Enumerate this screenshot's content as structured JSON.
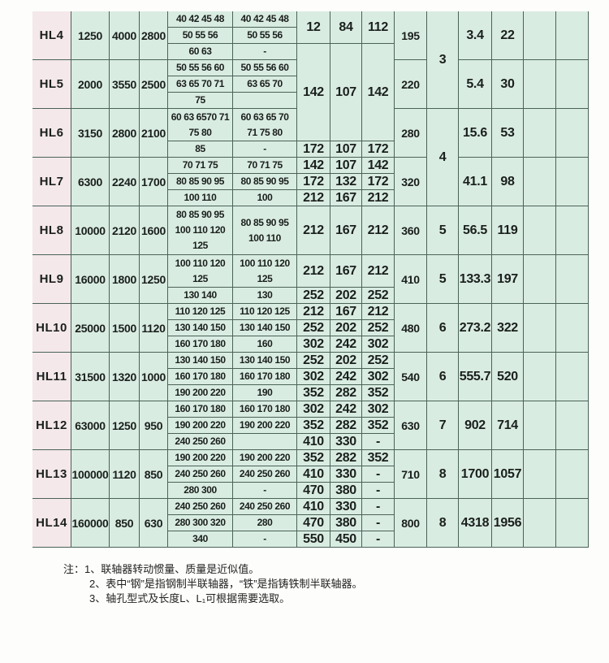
{
  "models": [
    {
      "model": "HL4",
      "torque": "1250",
      "speed_steel": "4000",
      "speed_iron": "2800",
      "D": "195",
      "inertia": "3.4",
      "mass": "22"
    },
    {
      "model": "HL5",
      "torque": "2000",
      "speed_steel": "3550",
      "speed_iron": "2500",
      "D": "220",
      "inertia": "5.4",
      "mass": "30"
    },
    {
      "model": "HL6",
      "torque": "3150",
      "speed_steel": "2800",
      "speed_iron": "2100",
      "D": "280",
      "inertia": "15.6",
      "mass": "53"
    },
    {
      "model": "HL7",
      "torque": "6300",
      "speed_steel": "2240",
      "speed_iron": "1700",
      "D": "320",
      "inertia": "41.1",
      "mass": "98"
    },
    {
      "model": "HL8",
      "torque": "10000",
      "speed_steel": "2120",
      "speed_iron": "1600",
      "D": "360",
      "inertia": "56.5",
      "mass": "119"
    },
    {
      "model": "HL9",
      "torque": "16000",
      "speed_steel": "1800",
      "speed_iron": "1250",
      "D": "410",
      "inertia": "133.3",
      "mass": "197"
    },
    {
      "model": "HL10",
      "torque": "25000",
      "speed_steel": "1500",
      "speed_iron": "1120",
      "D": "480",
      "inertia": "273.2",
      "mass": "322"
    },
    {
      "model": "HL11",
      "torque": "31500",
      "speed_steel": "1320",
      "speed_iron": "1000",
      "D": "540",
      "inertia": "555.7",
      "mass": "520"
    },
    {
      "model": "HL12",
      "torque": "63000",
      "speed_steel": "1250",
      "speed_iron": "950",
      "D": "630",
      "inertia": "902",
      "mass": "714"
    },
    {
      "model": "HL13",
      "torque": "100000",
      "speed_steel": "1120",
      "speed_iron": "850",
      "D": "710",
      "inertia": "1700",
      "mass": "1057"
    },
    {
      "model": "HL14",
      "torque": "160000",
      "speed_steel": "850",
      "speed_iron": "630",
      "D": "800",
      "inertia": "4318",
      "mass": "1956"
    }
  ],
  "bores": [
    {
      "start": 0,
      "span": 1,
      "steel": "40 42 45 48",
      "iron": "40 42 45 48"
    },
    {
      "start": 1,
      "span": 1,
      "steel": "50 55 56",
      "iron": "50 55 56"
    },
    {
      "start": 2,
      "span": 1,
      "steel": "60 63",
      "iron": "-"
    },
    {
      "start": 3,
      "span": 1,
      "steel": "50 55 56 60",
      "iron": "50 55 56 60"
    },
    {
      "start": 4,
      "span": 1,
      "steel": "63 65 70 71",
      "iron": "63 65 70"
    },
    {
      "start": 5,
      "span": 1,
      "steel": "75",
      "iron": ""
    },
    {
      "start": 6,
      "span": 2,
      "steel": "60 63 6570 71\n75 80",
      "iron": "60 63 65 70\n71 75 80"
    },
    {
      "start": 8,
      "span": 1,
      "steel": "85",
      "iron": "-"
    },
    {
      "start": 9,
      "span": 1,
      "steel": "70 71 75",
      "iron": "70 71 75"
    },
    {
      "start": 10,
      "span": 1,
      "steel": "80 85 90 95",
      "iron": "80 85 90 95"
    },
    {
      "start": 11,
      "span": 1,
      "steel": "100 110",
      "iron": "100"
    },
    {
      "start": 12,
      "span": 3,
      "steel": "80 85 90 95\n100 110 120\n125",
      "iron": "80 85 90 95\n100 110"
    },
    {
      "start": 15,
      "span": 2,
      "steel": "100 110 120\n125",
      "iron": "100 110 120\n125"
    },
    {
      "start": 17,
      "span": 1,
      "steel": "130 140",
      "iron": "130"
    },
    {
      "start": 18,
      "span": 1,
      "steel": "110 120 125",
      "iron": "110 120 125"
    },
    {
      "start": 19,
      "span": 1,
      "steel": "130 140 150",
      "iron": "130 140 150"
    },
    {
      "start": 20,
      "span": 1,
      "steel": "160 170 180",
      "iron": "160"
    },
    {
      "start": 21,
      "span": 1,
      "steel": "130 140 150",
      "iron": "130 140 150"
    },
    {
      "start": 22,
      "span": 1,
      "steel": "160 170 180",
      "iron": "160 170 180"
    },
    {
      "start": 23,
      "span": 1,
      "steel": "190 200 220",
      "iron": "190"
    },
    {
      "start": 24,
      "span": 1,
      "steel": "160 170 180",
      "iron": "160 170 180"
    },
    {
      "start": 25,
      "span": 1,
      "steel": "190 200 220",
      "iron": "190 200 220"
    },
    {
      "start": 26,
      "span": 1,
      "steel": "240 250 260",
      "iron": ""
    },
    {
      "start": 27,
      "span": 1,
      "steel": "190 200 220",
      "iron": "190 200 220"
    },
    {
      "start": 28,
      "span": 1,
      "steel": "240 250 260",
      "iron": "240 250 260"
    },
    {
      "start": 29,
      "span": 1,
      "steel": "280 300",
      "iron": "-"
    },
    {
      "start": 30,
      "span": 1,
      "steel": "240 250 260",
      "iron": "240 250 260"
    },
    {
      "start": 31,
      "span": 1,
      "steel": "280 300 320",
      "iron": "280"
    },
    {
      "start": 32,
      "span": 1,
      "steel": "340",
      "iron": "-"
    }
  ],
  "lengths": [
    {
      "start": 0,
      "span": 2,
      "L": "12",
      "L1": "84",
      "L2": "112"
    },
    {
      "start": 2,
      "span": 6,
      "L": "142",
      "L1": "107",
      "L2": "142"
    },
    {
      "start": 8,
      "span": 1,
      "L": "172",
      "L1": "107",
      "L2": "172"
    },
    {
      "start": 9,
      "span": 1,
      "L": "142",
      "L1": "107",
      "L2": "142"
    },
    {
      "start": 10,
      "span": 1,
      "L": "172",
      "L1": "132",
      "L2": "172"
    },
    {
      "start": 11,
      "span": 1,
      "L": "212",
      "L1": "167",
      "L2": "212"
    },
    {
      "start": 12,
      "span": 3,
      "L": "212",
      "L1": "167",
      "L2": "212"
    },
    {
      "start": 15,
      "span": 2,
      "L": "212",
      "L1": "167",
      "L2": "212"
    },
    {
      "start": 17,
      "span": 1,
      "L": "252",
      "L1": "202",
      "L2": "252"
    },
    {
      "start": 18,
      "span": 1,
      "L": "212",
      "L1": "167",
      "L2": "212"
    },
    {
      "start": 19,
      "span": 1,
      "L": "252",
      "L1": "202",
      "L2": "252"
    },
    {
      "start": 20,
      "span": 1,
      "L": "302",
      "L1": "242",
      "L2": "302"
    },
    {
      "start": 21,
      "span": 1,
      "L": "252",
      "L1": "202",
      "L2": "252"
    },
    {
      "start": 22,
      "span": 1,
      "L": "302",
      "L1": "242",
      "L2": "302"
    },
    {
      "start": 23,
      "span": 1,
      "L": "352",
      "L1": "282",
      "L2": "352"
    },
    {
      "start": 24,
      "span": 1,
      "L": "302",
      "L1": "242",
      "L2": "302"
    },
    {
      "start": 25,
      "span": 1,
      "L": "352",
      "L1": "282",
      "L2": "352"
    },
    {
      "start": 26,
      "span": 1,
      "L": "410",
      "L1": "330",
      "L2": "-"
    },
    {
      "start": 27,
      "span": 1,
      "L": "352",
      "L1": "282",
      "L2": "352"
    },
    {
      "start": 28,
      "span": 1,
      "L": "410",
      "L1": "330",
      "L2": "-"
    },
    {
      "start": 29,
      "span": 1,
      "L": "470",
      "L1": "380",
      "L2": "-"
    },
    {
      "start": 30,
      "span": 1,
      "L": "410",
      "L1": "330",
      "L2": "-"
    },
    {
      "start": 31,
      "span": 1,
      "L": "470",
      "L1": "380",
      "L2": "-"
    },
    {
      "start": 32,
      "span": 1,
      "L": "550",
      "L1": "450",
      "L2": "-"
    }
  ],
  "groups": [
    {
      "start": 0,
      "span": 6,
      "value": "3"
    },
    {
      "start": 6,
      "span": 6,
      "value": "4"
    },
    {
      "start": 12,
      "span": 3,
      "value": "5"
    },
    {
      "start": 15,
      "span": 3,
      "value": "5"
    },
    {
      "start": 18,
      "span": 3,
      "value": "6"
    },
    {
      "start": 21,
      "span": 3,
      "value": "6"
    },
    {
      "start": 24,
      "span": 3,
      "value": "7"
    },
    {
      "start": 27,
      "span": 3,
      "value": "8"
    },
    {
      "start": 30,
      "span": 3,
      "value": "8"
    }
  ],
  "notes": [
    "注：1、联轴器转动惯量、质量是近似值。",
    "2、表中“钢”是指钢制半联轴器，“铁”是指铸铁制半联轴器。",
    "3、轴孔型式及长度L、L₁可根据需要选取。"
  ],
  "colors": {
    "table_bg": "#d9ece2",
    "model_bg": "#f4e8eb",
    "grid": "#4a6257"
  }
}
